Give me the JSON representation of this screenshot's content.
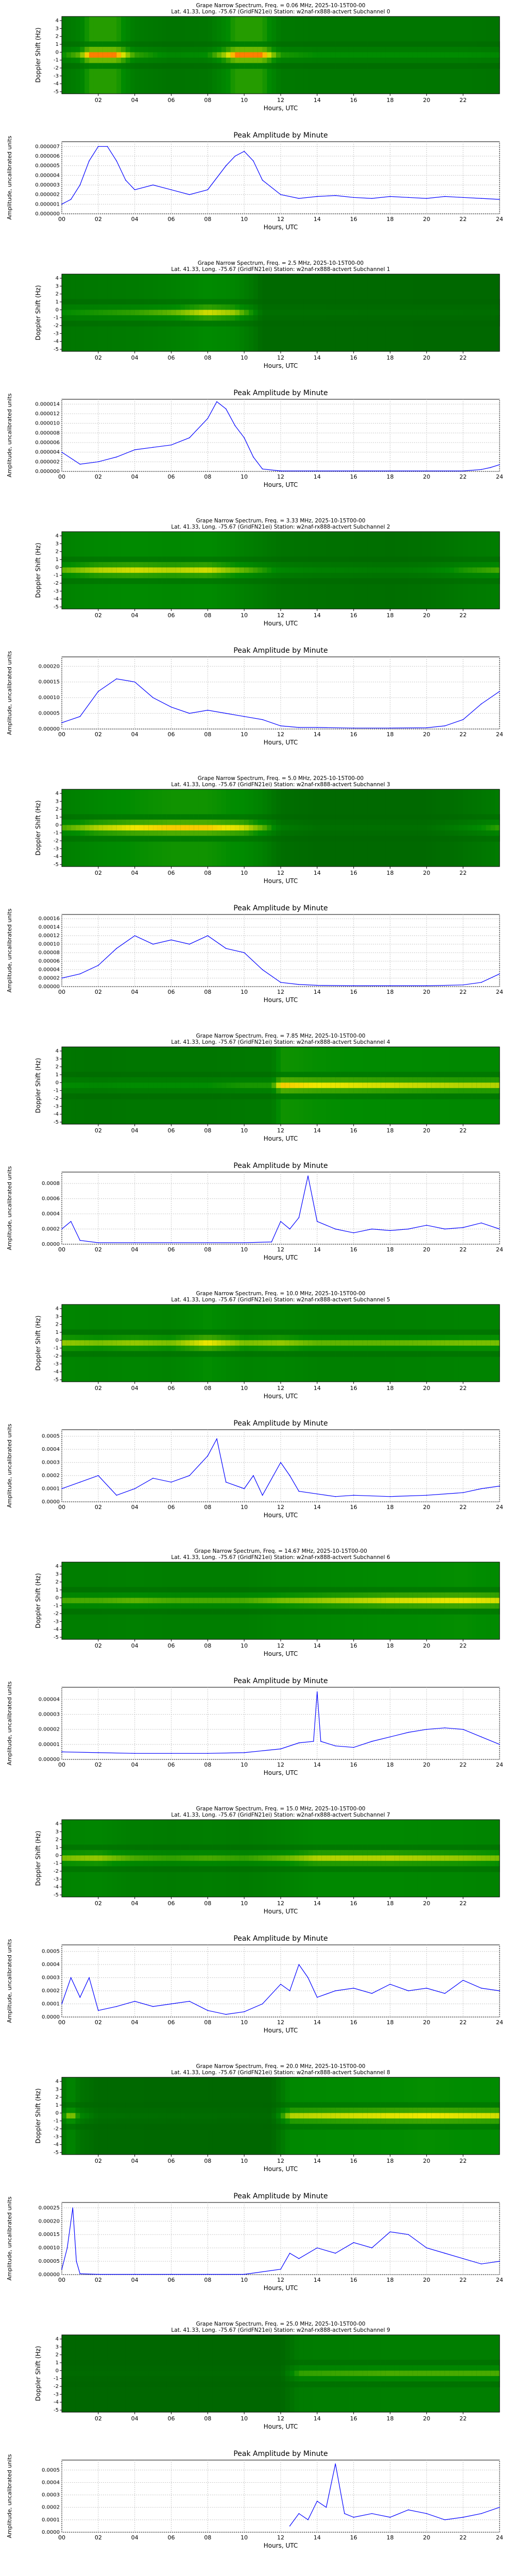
{
  "page": {
    "x_ticks_spec": [
      "02",
      "04",
      "06",
      "08",
      "10",
      "12",
      "14",
      "16",
      "18",
      "20",
      "22"
    ],
    "x_ticks_line": [
      "00",
      "02",
      "04",
      "06",
      "08",
      "10",
      "12",
      "14",
      "16",
      "18",
      "20",
      "22",
      "24"
    ],
    "x_label": "Hours, UTC",
    "spec_y_label": "Doppler Shift (Hz)",
    "spec_y_ticks": [
      "4",
      "3",
      "2",
      "1",
      "0",
      "-1",
      "-2",
      "-3",
      "-4",
      "-5"
    ],
    "line_title": "Peak Amplitude by Minute",
    "line_y_label": "Amplitude, uncalibrated units",
    "line_color": "#0000ff"
  },
  "panels": [
    {
      "spec_title_1": "Grape Narrow Spectrum, Freq. = 0.06 MHz, 2025-10-15T00-00",
      "spec_title_2": "Lat. 41.33, Long. -75.67 (GridFN21ei) Station: w2naf-rx888-actvert Subchannel 0",
      "spec_profile": [
        [
          0,
          0.35
        ],
        [
          1,
          0.55
        ],
        [
          1.5,
          0.95
        ],
        [
          3,
          0.95
        ],
        [
          4,
          0.45
        ],
        [
          6,
          0.3
        ],
        [
          8,
          0.35
        ],
        [
          9,
          0.7
        ],
        [
          9.5,
          0.95
        ],
        [
          11,
          0.95
        ],
        [
          12,
          0.4
        ],
        [
          14,
          0.35
        ],
        [
          18,
          0.35
        ],
        [
          22,
          0.35
        ],
        [
          24,
          0.3
        ]
      ],
      "amp_ticks": [
        "0.000007",
        "0.000006",
        "0.000005",
        "0.000004",
        "0.000003",
        "0.000002",
        "0.000001",
        "0.000000"
      ],
      "amp_max": 7.5e-06
    },
    {
      "spec_title_1": "Grape Narrow Spectrum, Freq. = 2.5 MHz, 2025-10-15T00-00",
      "spec_title_2": "Lat. 41.33, Long. -75.67 (GridFN21ei) Station: w2naf-rx888-actvert Subchannel 1",
      "spec_profile": [
        [
          0,
          0.35
        ],
        [
          2,
          0.4
        ],
        [
          4,
          0.45
        ],
        [
          6,
          0.55
        ],
        [
          8,
          0.75
        ],
        [
          9.5,
          0.65
        ],
        [
          10.5,
          0.35
        ],
        [
          11,
          0.1
        ],
        [
          24,
          0.08
        ]
      ],
      "amp_ticks": [
        "0.000014",
        "0.000012",
        "0.000010",
        "0.000008",
        "0.000006",
        "0.000004",
        "0.000002",
        "0.000000"
      ],
      "amp_max": 1.5e-05
    },
    {
      "spec_title_1": "Grape Narrow Spectrum, Freq. = 3.33 MHz, 2025-10-15T00-00",
      "spec_title_2": "Lat. 41.33, Long. -75.67 (GridFN21ei) Station: w2naf-rx888-actvert Subchannel 2",
      "spec_profile": [
        [
          0,
          0.55
        ],
        [
          2,
          0.7
        ],
        [
          4,
          0.75
        ],
        [
          6,
          0.7
        ],
        [
          8,
          0.75
        ],
        [
          10,
          0.55
        ],
        [
          12,
          0.3
        ],
        [
          14,
          0.25
        ],
        [
          18,
          0.2
        ],
        [
          20,
          0.25
        ],
        [
          22,
          0.4
        ],
        [
          24,
          0.5
        ]
      ],
      "amp_ticks": [
        "0.00020",
        "0.00015",
        "0.00010",
        "0.00005",
        "0.00000"
      ],
      "amp_max": 0.00023
    },
    {
      "spec_title_1": "Grape Narrow Spectrum, Freq. = 5.0 MHz, 2025-10-15T00-00",
      "spec_title_2": "Lat. 41.33, Long. -75.67 (GridFN21ei) Station: w2naf-rx888-actvert Subchannel 3",
      "spec_profile": [
        [
          0,
          0.5
        ],
        [
          2,
          0.7
        ],
        [
          4,
          0.8
        ],
        [
          6,
          0.85
        ],
        [
          8,
          0.85
        ],
        [
          10,
          0.75
        ],
        [
          11,
          0.55
        ],
        [
          12,
          0.2
        ],
        [
          14,
          0.1
        ],
        [
          20,
          0.1
        ],
        [
          22,
          0.25
        ],
        [
          24,
          0.45
        ]
      ],
      "amp_ticks": [
        "0.00016",
        "0.00014",
        "0.00012",
        "0.00010",
        "0.00008",
        "0.00006",
        "0.00004",
        "0.00002",
        "0.00000"
      ],
      "amp_max": 0.00017
    },
    {
      "spec_title_1": "Grape Narrow Spectrum, Freq. = 7.85 MHz, 2025-10-15T00-00",
      "spec_title_2": "Lat. 41.33, Long. -75.67 (GridFN21ei) Station: w2naf-rx888-actvert Subchannel 4",
      "spec_profile": [
        [
          0,
          0.35
        ],
        [
          2,
          0.3
        ],
        [
          4,
          0.35
        ],
        [
          6,
          0.35
        ],
        [
          8,
          0.35
        ],
        [
          10,
          0.4
        ],
        [
          11.5,
          0.4
        ],
        [
          12,
          0.85
        ],
        [
          14,
          0.8
        ],
        [
          18,
          0.75
        ],
        [
          22,
          0.7
        ],
        [
          24,
          0.7
        ]
      ],
      "amp_ticks": [
        "0.0008",
        "0.0006",
        "0.0004",
        "0.0002",
        "0.0000"
      ],
      "amp_max": 0.00095
    },
    {
      "spec_title_1": "Grape Narrow Spectrum, Freq. = 10.0 MHz, 2025-10-15T00-00",
      "spec_title_2": "Lat. 41.33, Long. -75.67 (GridFN21ei) Station: w2naf-rx888-actvert Subchannel 5",
      "spec_profile": [
        [
          0,
          0.65
        ],
        [
          2,
          0.6
        ],
        [
          4,
          0.65
        ],
        [
          6,
          0.6
        ],
        [
          8,
          0.8
        ],
        [
          10,
          0.6
        ],
        [
          12,
          0.65
        ],
        [
          14,
          0.55
        ],
        [
          18,
          0.55
        ],
        [
          22,
          0.6
        ],
        [
          24,
          0.6
        ]
      ],
      "amp_ticks": [
        "0.0005",
        "0.0004",
        "0.0003",
        "0.0002",
        "0.0001",
        "0.0000"
      ],
      "amp_max": 0.00055
    },
    {
      "spec_title_1": "Grape Narrow Spectrum, Freq. = 14.67 MHz, 2025-10-15T00-00",
      "spec_title_2": "Lat. 41.33, Long. -75.67 (GridFN21ei) Station: w2naf-rx888-actvert Subchannel 6",
      "spec_profile": [
        [
          0,
          0.5
        ],
        [
          2,
          0.5
        ],
        [
          4,
          0.55
        ],
        [
          6,
          0.5
        ],
        [
          8,
          0.5
        ],
        [
          10,
          0.5
        ],
        [
          12,
          0.6
        ],
        [
          14,
          0.65
        ],
        [
          18,
          0.75
        ],
        [
          22,
          0.8
        ],
        [
          24,
          0.75
        ]
      ],
      "amp_ticks": [
        "0.00004",
        "0.00003",
        "0.00002",
        "0.00001",
        "0.00000"
      ],
      "amp_max": 4.8e-05
    },
    {
      "spec_title_1": "Grape Narrow Spectrum, Freq. = 15.0 MHz, 2025-10-15T00-00",
      "spec_title_2": "Lat. 41.33, Long. -75.67 (GridFN21ei) Station: w2naf-rx888-actvert Subchannel 7",
      "spec_profile": [
        [
          0,
          0.6
        ],
        [
          2,
          0.65
        ],
        [
          4,
          0.5
        ],
        [
          6,
          0.45
        ],
        [
          8,
          0.5
        ],
        [
          10,
          0.45
        ],
        [
          12,
          0.55
        ],
        [
          14,
          0.7
        ],
        [
          18,
          0.7
        ],
        [
          22,
          0.65
        ],
        [
          24,
          0.6
        ]
      ],
      "amp_ticks": [
        "0.0005",
        "0.0004",
        "0.0003",
        "0.0002",
        "0.0001",
        "0.0000"
      ],
      "amp_max": 0.00055
    },
    {
      "spec_title_1": "Grape Narrow Spectrum, Freq. = 20.0 MHz, 2025-10-15T00-00",
      "spec_title_2": "Lat. 41.33, Long. -75.67 (GridFN21ei) Station: w2naf-rx888-actvert Subchannel 8",
      "spec_profile": [
        [
          0,
          0.3
        ],
        [
          0.5,
          0.7
        ],
        [
          1,
          0.3
        ],
        [
          2,
          0.1
        ],
        [
          11.5,
          0.05
        ],
        [
          12.5,
          0.7
        ],
        [
          16,
          0.75
        ],
        [
          20,
          0.8
        ],
        [
          24,
          0.75
        ]
      ],
      "amp_ticks": [
        "0.00025",
        "0.00020",
        "0.00015",
        "0.00010",
        "0.00005",
        "0.00000"
      ],
      "amp_max": 0.00027
    },
    {
      "spec_title_1": "Grape Narrow Spectrum, Freq. = 25.0 MHz, 2025-10-15T00-00",
      "spec_title_2": "Lat. 41.33, Long. -75.67 (GridFN21ei) Station: w2naf-rx888-actvert Subchannel 9",
      "spec_profile": [
        [
          0,
          0.05
        ],
        [
          12,
          0.05
        ],
        [
          13,
          0.45
        ],
        [
          18,
          0.5
        ],
        [
          24,
          0.5
        ]
      ],
      "amp_ticks": [
        "0.0005",
        "0.0004",
        "0.0003",
        "0.0002",
        "0.0001",
        "0.0000"
      ],
      "amp_max": 0.00058
    }
  ],
  "chart_data": [
    {
      "type": "line",
      "title": "Peak Amplitude by Minute",
      "xlabel": "Hours, UTC",
      "ylabel": "Amplitude, uncalibrated units",
      "xlim": [
        0,
        24
      ],
      "ylim": [
        0,
        7.5e-06
      ],
      "x": [
        0,
        0.5,
        1,
        1.5,
        2,
        2.5,
        3,
        3.5,
        4,
        5,
        6,
        7,
        8,
        9,
        9.5,
        10,
        10.5,
        11,
        12,
        13,
        14,
        15,
        16,
        17,
        18,
        19,
        20,
        21,
        22,
        23,
        24
      ],
      "y": [
        1e-06,
        1.5e-06,
        3e-06,
        5.5e-06,
        7e-06,
        7e-06,
        5.5e-06,
        3.5e-06,
        2.5e-06,
        3e-06,
        2.5e-06,
        2e-06,
        2.5e-06,
        5e-06,
        6e-06,
        6.5e-06,
        5.5e-06,
        3.5e-06,
        2e-06,
        1.6e-06,
        1.8e-06,
        1.9e-06,
        1.7e-06,
        1.6e-06,
        1.8e-06,
        1.7e-06,
        1.6e-06,
        1.8e-06,
        1.7e-06,
        1.6e-06,
        1.5e-06
      ]
    },
    {
      "type": "line",
      "title": "Peak Amplitude by Minute",
      "xlabel": "Hours, UTC",
      "ylabel": "Amplitude, uncalibrated units",
      "xlim": [
        0,
        24
      ],
      "ylim": [
        0,
        1.5e-05
      ],
      "x": [
        0,
        1,
        2,
        3,
        4,
        5,
        6,
        7,
        8,
        8.5,
        9,
        9.5,
        10,
        10.5,
        11,
        12,
        14,
        16,
        18,
        20,
        22,
        23,
        23.5,
        24
      ],
      "y": [
        4e-06,
        1.5e-06,
        2e-06,
        3e-06,
        4.5e-06,
        5e-06,
        5.5e-06,
        7e-06,
        1.1e-05,
        1.45e-05,
        1.3e-05,
        9.5e-06,
        7e-06,
        3e-06,
        5e-07,
        1e-07,
        1e-07,
        1e-07,
        1e-07,
        1e-07,
        1e-07,
        4e-07,
        8e-07,
        1.4e-06
      ]
    },
    {
      "type": "line",
      "title": "Peak Amplitude by Minute",
      "xlabel": "Hours, UTC",
      "ylabel": "Amplitude, uncalibrated units",
      "xlim": [
        0,
        24
      ],
      "ylim": [
        0,
        0.00023
      ],
      "x": [
        0,
        1,
        2,
        3,
        4,
        5,
        6,
        7,
        8,
        9,
        10,
        11,
        12,
        13,
        14,
        16,
        18,
        20,
        21,
        22,
        23,
        24
      ],
      "y": [
        2e-05,
        4e-05,
        0.00012,
        0.00016,
        0.00015,
        0.0001,
        7e-05,
        5e-05,
        6e-05,
        5e-05,
        4e-05,
        3e-05,
        1e-05,
        5e-06,
        5e-06,
        3e-06,
        3e-06,
        4e-06,
        1e-05,
        3e-05,
        8e-05,
        0.00012
      ]
    },
    {
      "type": "line",
      "title": "Peak Amplitude by Minute",
      "xlabel": "Hours, UTC",
      "ylabel": "Amplitude, uncalibrated units",
      "xlim": [
        0,
        24
      ],
      "ylim": [
        0,
        0.00017
      ],
      "x": [
        0,
        1,
        2,
        3,
        4,
        5,
        6,
        7,
        8,
        9,
        10,
        11,
        12,
        13,
        14,
        16,
        18,
        20,
        22,
        23,
        24
      ],
      "y": [
        2e-05,
        3e-05,
        5e-05,
        9e-05,
        0.00012,
        0.0001,
        0.00011,
        0.0001,
        0.00012,
        9e-05,
        8e-05,
        4e-05,
        1e-05,
        5e-06,
        3e-06,
        2e-06,
        2e-06,
        2e-06,
        4e-06,
        1e-05,
        3e-05
      ]
    },
    {
      "type": "line",
      "title": "Peak Amplitude by Minute",
      "xlabel": "Hours, UTC",
      "ylabel": "Amplitude, uncalibrated units",
      "xlim": [
        0,
        24
      ],
      "ylim": [
        0,
        0.00095
      ],
      "x": [
        0,
        0.5,
        1,
        2,
        4,
        6,
        8,
        10,
        11.5,
        12,
        12.5,
        13,
        13.5,
        14,
        15,
        16,
        17,
        18,
        19,
        20,
        21,
        22,
        23,
        24
      ],
      "y": [
        0.0002,
        0.0003,
        5e-05,
        2e-05,
        2e-05,
        2e-05,
        2e-05,
        2e-05,
        3e-05,
        0.0003,
        0.0002,
        0.00035,
        0.0009,
        0.0003,
        0.0002,
        0.00015,
        0.0002,
        0.00018,
        0.0002,
        0.00025,
        0.0002,
        0.00022,
        0.00028,
        0.0002
      ]
    },
    {
      "type": "line",
      "title": "Peak Amplitude by Minute",
      "xlabel": "Hours, UTC",
      "ylabel": "Amplitude, uncalibrated units",
      "xlim": [
        0,
        24
      ],
      "ylim": [
        0,
        0.00055
      ],
      "x": [
        0,
        1,
        2,
        3,
        4,
        5,
        6,
        7,
        8,
        8.5,
        9,
        10,
        10.5,
        11,
        12,
        12.5,
        13,
        14,
        15,
        16,
        18,
        20,
        22,
        23,
        24
      ],
      "y": [
        0.0001,
        0.00015,
        0.0002,
        5e-05,
        0.0001,
        0.00018,
        0.00015,
        0.0002,
        0.00035,
        0.00048,
        0.00015,
        0.0001,
        0.0002,
        5e-05,
        0.0003,
        0.0002,
        8e-05,
        6e-05,
        4e-05,
        5e-05,
        4e-05,
        5e-05,
        7e-05,
        0.0001,
        0.00012
      ]
    },
    {
      "type": "line",
      "title": "Peak Amplitude by Minute",
      "xlabel": "Hours, UTC",
      "ylabel": "Amplitude, uncalibrated units",
      "xlim": [
        0,
        24
      ],
      "ylim": [
        0,
        4.8e-05
      ],
      "x": [
        0,
        2,
        4,
        6,
        8,
        10,
        12,
        13,
        13.8,
        14,
        14.2,
        15,
        16,
        17,
        18,
        19,
        20,
        21,
        22,
        23,
        24
      ],
      "y": [
        5e-06,
        4.5e-06,
        4e-06,
        4e-06,
        4e-06,
        4.5e-06,
        7e-06,
        1.1e-05,
        1.2e-05,
        4.5e-05,
        1.2e-05,
        9e-06,
        8e-06,
        1.2e-05,
        1.5e-05,
        1.8e-05,
        2e-05,
        2.1e-05,
        2e-05,
        1.5e-05,
        1e-05
      ]
    },
    {
      "type": "line",
      "title": "Peak Amplitude by Minute",
      "xlabel": "Hours, UTC",
      "ylabel": "Amplitude, uncalibrated units",
      "xlim": [
        0,
        24
      ],
      "ylim": [
        0,
        0.00055
      ],
      "x": [
        0,
        0.5,
        1,
        1.5,
        2,
        3,
        4,
        5,
        6,
        7,
        8,
        9,
        10,
        11,
        12,
        12.5,
        13,
        13.5,
        14,
        15,
        16,
        17,
        18,
        19,
        20,
        21,
        22,
        23,
        24
      ],
      "y": [
        0.0001,
        0.0003,
        0.00015,
        0.0003,
        5e-05,
        8e-05,
        0.00012,
        8e-05,
        0.0001,
        0.00012,
        5e-05,
        2e-05,
        4e-05,
        0.0001,
        0.00025,
        0.0002,
        0.0004,
        0.0003,
        0.00015,
        0.0002,
        0.00022,
        0.00018,
        0.00025,
        0.0002,
        0.00022,
        0.00018,
        0.00028,
        0.00022,
        0.0002
      ]
    },
    {
      "type": "line",
      "title": "Peak Amplitude by Minute",
      "xlabel": "Hours, UTC",
      "ylabel": "Amplitude, uncalibrated units",
      "xlim": [
        0,
        24
      ],
      "ylim": [
        0,
        0.00027
      ],
      "x": [
        0,
        0.3,
        0.6,
        0.8,
        1,
        2,
        4,
        6,
        8,
        10,
        12,
        12.5,
        13,
        14,
        15,
        16,
        17,
        18,
        19,
        20,
        21,
        22,
        23,
        24
      ],
      "y": [
        2e-05,
        0.0001,
        0.00025,
        5e-05,
        3e-06,
        1e-06,
        1e-06,
        1e-06,
        1e-06,
        1e-06,
        2e-05,
        8e-05,
        6e-05,
        0.0001,
        8e-05,
        0.00012,
        0.0001,
        0.00016,
        0.00015,
        0.0001,
        8e-05,
        6e-05,
        4e-05,
        5e-05
      ]
    },
    {
      "type": "line",
      "title": "Peak Amplitude by Minute",
      "xlabel": "Hours, UTC",
      "ylabel": "Amplitude, uncalibrated units",
      "xlim": [
        0,
        24
      ],
      "ylim": [
        0,
        0.00058
      ],
      "x": [
        12.5,
        13,
        13.5,
        14,
        14.5,
        15,
        15.5,
        16,
        17,
        18,
        19,
        20,
        21,
        22,
        23,
        24
      ],
      "y": [
        5e-05,
        0.00015,
        0.0001,
        0.00025,
        0.0002,
        0.00055,
        0.00015,
        0.00012,
        0.00015,
        0.00012,
        0.00018,
        0.00015,
        0.0001,
        0.00012,
        0.00015,
        0.0002
      ]
    }
  ]
}
